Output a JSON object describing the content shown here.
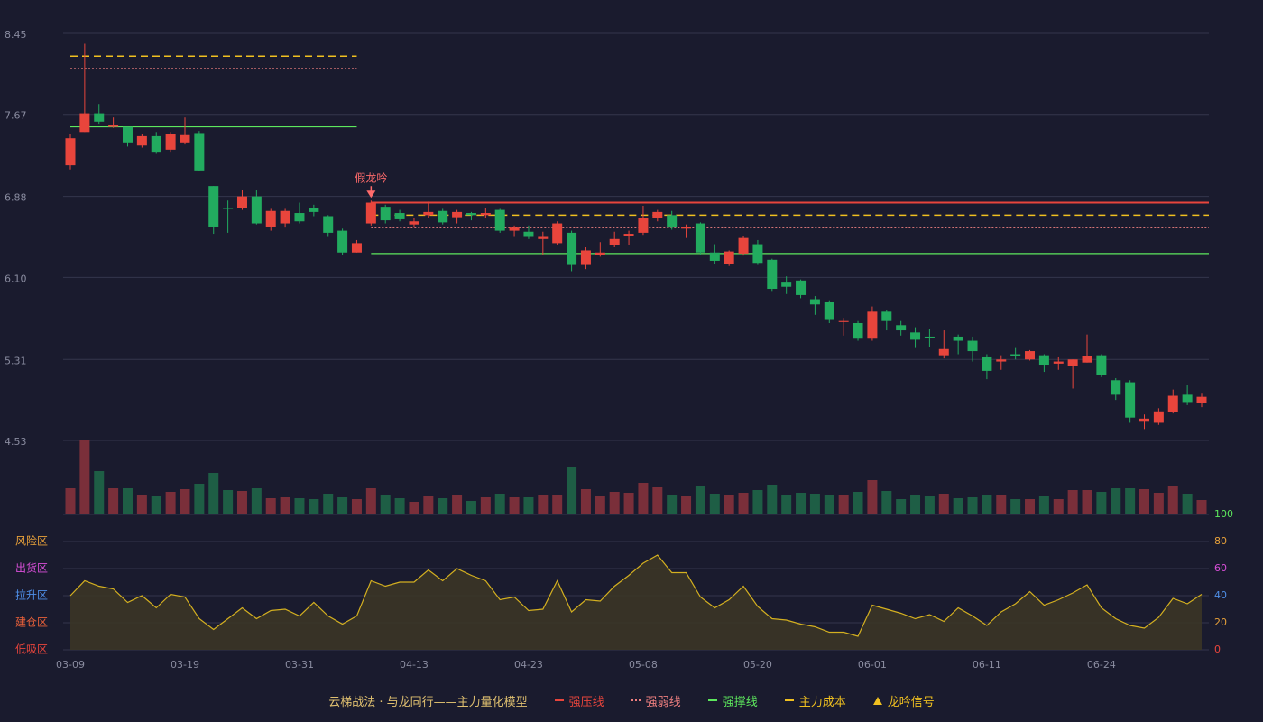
{
  "chart_data": {
    "type": "candlestick",
    "categories": [
      "03-09",
      null,
      null,
      null,
      null,
      null,
      null,
      null,
      "03-19",
      null,
      null,
      null,
      null,
      null,
      null,
      null,
      "03-31",
      null,
      null,
      null,
      null,
      null,
      null,
      null,
      "04-13",
      null,
      null,
      null,
      null,
      null,
      null,
      null,
      "04-23",
      null,
      null,
      null,
      null,
      null,
      null,
      null,
      "05-08",
      null,
      null,
      null,
      null,
      null,
      null,
      null,
      "05-20",
      null,
      null,
      null,
      null,
      null,
      null,
      null,
      "06-01",
      null,
      null,
      null,
      null,
      null,
      null,
      null,
      "06-11",
      null,
      null,
      null,
      null,
      null,
      null,
      null,
      "06-24",
      null,
      null,
      null,
      null,
      null,
      null,
      null
    ],
    "open": [
      7.18,
      7.5,
      7.68,
      7.55,
      7.55,
      7.37,
      7.46,
      7.33,
      7.4,
      7.49,
      6.98,
      6.77,
      6.77,
      6.88,
      6.59,
      6.62,
      6.72,
      6.77,
      6.69,
      6.55,
      6.34,
      6.62,
      6.78,
      6.72,
      6.61,
      6.7,
      6.74,
      6.68,
      6.72,
      6.7,
      6.75,
      6.55,
      6.54,
      6.47,
      6.43,
      6.53,
      6.22,
      6.32,
      6.41,
      6.5,
      6.53,
      6.67,
      6.7,
      6.57,
      6.62,
      6.34,
      6.23,
      6.33,
      6.42,
      6.27,
      6.05,
      6.07,
      5.89,
      5.86,
      5.67,
      5.66,
      5.51,
      5.77,
      5.64,
      5.57,
      5.53,
      5.35,
      5.53,
      5.49,
      5.33,
      5.29,
      5.36,
      5.31,
      5.35,
      5.27,
      5.25,
      5.28,
      5.35,
      5.11,
      5.09,
      4.71,
      4.7,
      4.8,
      4.97,
      4.89
    ],
    "high": [
      7.48,
      8.35,
      7.77,
      7.64,
      7.55,
      7.48,
      7.5,
      7.5,
      7.64,
      7.51,
      6.98,
      6.84,
      6.94,
      6.94,
      6.76,
      6.76,
      6.82,
      6.8,
      6.7,
      6.57,
      6.46,
      6.84,
      6.8,
      6.75,
      6.67,
      6.83,
      6.76,
      6.75,
      6.73,
      6.77,
      6.76,
      6.6,
      6.6,
      6.54,
      6.64,
      6.55,
      6.39,
      6.44,
      6.54,
      6.55,
      6.79,
      6.75,
      6.74,
      6.61,
      6.63,
      6.42,
      6.36,
      6.5,
      6.46,
      6.28,
      6.11,
      6.08,
      5.92,
      5.88,
      5.71,
      5.68,
      5.82,
      5.79,
      5.68,
      5.62,
      5.6,
      5.59,
      5.55,
      5.53,
      5.36,
      5.35,
      5.42,
      5.4,
      5.36,
      5.33,
      5.31,
      5.55,
      5.36,
      5.13,
      5.11,
      4.78,
      4.84,
      5.02,
      5.06,
      4.98
    ],
    "low": [
      7.14,
      7.5,
      7.58,
      7.54,
      7.36,
      7.35,
      7.29,
      7.31,
      7.38,
      7.12,
      6.52,
      6.53,
      6.75,
      6.61,
      6.55,
      6.58,
      6.62,
      6.69,
      6.49,
      6.32,
      6.34,
      6.6,
      6.62,
      6.64,
      6.58,
      6.67,
      6.61,
      6.62,
      6.65,
      6.67,
      6.53,
      6.49,
      6.47,
      6.32,
      6.41,
      6.16,
      6.18,
      6.3,
      6.39,
      6.41,
      6.51,
      6.64,
      6.56,
      6.48,
      6.32,
      6.23,
      6.21,
      6.31,
      6.22,
      5.97,
      5.94,
      5.9,
      5.74,
      5.66,
      5.54,
      5.49,
      5.49,
      5.59,
      5.54,
      5.42,
      5.43,
      5.32,
      5.36,
      5.29,
      5.12,
      5.21,
      5.31,
      5.3,
      5.19,
      5.21,
      5.03,
      5.28,
      5.14,
      4.92,
      4.7,
      4.64,
      4.68,
      4.79,
      4.87,
      4.85
    ],
    "close": [
      7.44,
      7.68,
      7.6,
      7.57,
      7.4,
      7.46,
      7.31,
      7.48,
      7.47,
      7.13,
      6.59,
      6.76,
      6.88,
      6.62,
      6.74,
      6.74,
      6.64,
      6.73,
      6.53,
      6.34,
      6.43,
      6.82,
      6.65,
      6.66,
      6.64,
      6.73,
      6.63,
      6.73,
      6.7,
      6.72,
      6.55,
      6.58,
      6.49,
      6.49,
      6.62,
      6.22,
      6.36,
      6.34,
      6.47,
      6.52,
      6.67,
      6.73,
      6.58,
      6.59,
      6.34,
      6.26,
      6.35,
      6.48,
      6.24,
      5.99,
      6.01,
      5.93,
      5.84,
      5.69,
      5.68,
      5.51,
      5.77,
      5.68,
      5.59,
      5.5,
      5.52,
      5.41,
      5.49,
      5.39,
      5.2,
      5.31,
      5.34,
      5.39,
      5.26,
      5.29,
      5.31,
      5.34,
      5.16,
      4.97,
      4.75,
      4.74,
      4.81,
      4.96,
      4.9,
      4.95
    ],
    "up_color": "#e8453c",
    "down_color": "#22ab5f",
    "ylim": [
      4.53,
      8.45
    ],
    "yticks": [
      8.45,
      7.67,
      6.88,
      {
        "value": 6.1,
        "label": "6.10"
      },
      5.31,
      4.53
    ],
    "grid": true,
    "annotation": {
      "text": "假龙吟",
      "index": 21,
      "color": "#ff6b6b"
    },
    "levels": [
      {
        "name": "强压线",
        "color": "#e8453c",
        "style": "solid"
      },
      {
        "name": "强弱线",
        "color": "#f08080",
        "style": "dotted"
      },
      {
        "name": "强撑线",
        "color": "#5de85d",
        "style": "solid"
      },
      {
        "name": "主力成本",
        "color": "#f0c020",
        "style": "dashed"
      }
    ],
    "level_segments": [
      {
        "start": 0,
        "end": 20,
        "values": [
          null,
          8.11,
          7.55,
          8.23
        ]
      },
      {
        "start": 21,
        "end": 79,
        "values": [
          6.82,
          6.58,
          6.33,
          6.7
        ]
      }
    ],
    "signal": {
      "name": "龙吟信号",
      "color": "#f0c020"
    },
    "legend_title": "云梯战法 · 与龙同行——主力量化模型",
    "volume": {
      "values": [
        29,
        82,
        48,
        29,
        29,
        22,
        20,
        25,
        28,
        34,
        46,
        27,
        26,
        29,
        18,
        19,
        18,
        17,
        23,
        19,
        17,
        29,
        22,
        18,
        14,
        20,
        18,
        22,
        15,
        19,
        23,
        19,
        19,
        21,
        21,
        53,
        28,
        20,
        25,
        24,
        35,
        30,
        21,
        20,
        32,
        23,
        21,
        24,
        27,
        33,
        22,
        24,
        23,
        22,
        22,
        25,
        38,
        26,
        17,
        22,
        20,
        23,
        18,
        19,
        22,
        21,
        17,
        17,
        20,
        17,
        27,
        27,
        25,
        29,
        29,
        28,
        24,
        31,
        23,
        16
      ],
      "ylim": [
        0,
        82
      ],
      "up_color": "#7a2f3a",
      "down_color": "#1e5e45"
    },
    "oscillator": {
      "values": [
        40,
        51,
        47,
        45,
        35,
        40,
        31,
        41,
        39,
        23,
        15,
        23,
        31,
        23,
        29,
        30,
        25,
        35,
        25,
        19,
        25,
        51,
        47,
        50,
        50,
        59,
        51,
        60,
        55,
        51,
        37,
        39,
        29,
        30,
        51,
        28,
        37,
        36,
        47,
        55,
        64,
        70,
        57,
        57,
        39,
        31,
        37,
        47,
        32,
        23,
        22,
        19,
        17,
        13,
        13,
        10,
        33,
        30,
        27,
        23,
        26,
        21,
        31,
        25,
        18,
        28,
        34,
        43,
        33,
        37,
        42,
        48,
        31,
        23,
        18,
        16,
        24,
        38,
        34,
        41
      ],
      "color": "#d4b020",
      "fill": "#3b3526",
      "ylim": [
        0,
        100
      ],
      "yticks": [
        100,
        80,
        60,
        40,
        20,
        0
      ],
      "ytick_colors": [
        "#5de85d",
        "#e8a13a",
        "#d94fd9",
        "#4f8fe8",
        "#e8a13a",
        "#e8453c"
      ],
      "zones": [
        {
          "label": "风险区",
          "value": 80,
          "color": "#e8a13a"
        },
        {
          "label": "出货区",
          "value": 60,
          "color": "#d94fd9"
        },
        {
          "label": "拉升区",
          "value": 40,
          "color": "#4f8fe8"
        },
        {
          "label": "建仓区",
          "value": 20,
          "color": "#e8603a"
        },
        {
          "label": "低吸区",
          "value": 0,
          "color": "#e8453c"
        }
      ]
    }
  }
}
